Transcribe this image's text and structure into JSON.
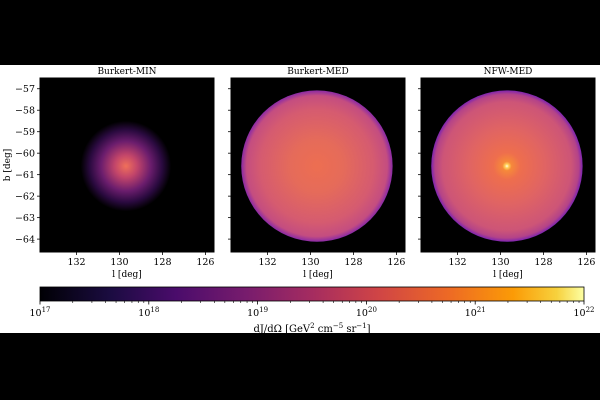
{
  "chart_data": {
    "type": "heatmap",
    "panels": [
      {
        "title": "Burkert-MIN",
        "profile": "burkert-min",
        "xlabel": "l [deg]",
        "ylabel": "b [deg]",
        "xlim": [
          133.7,
          125.6
        ],
        "ylim": [
          -64.6,
          -56.5
        ],
        "xticks": [
          132,
          130,
          128,
          126
        ],
        "yticks": [
          -57,
          -58,
          -59,
          -60,
          -61,
          -62,
          -63,
          -64
        ],
        "center": [
          129.7,
          -60.6
        ],
        "show_yticklabels": true
      },
      {
        "title": "Burkert-MED",
        "profile": "burkert-med",
        "xlabel": "l [deg]",
        "ylabel": "",
        "xlim": [
          133.7,
          125.6
        ],
        "ylim": [
          -64.6,
          -56.5
        ],
        "xticks": [
          132,
          130,
          128,
          126
        ],
        "yticks": [
          -57,
          -58,
          -59,
          -60,
          -61,
          -62,
          -63,
          -64
        ],
        "center": [
          129.7,
          -60.6
        ],
        "show_yticklabels": false
      },
      {
        "title": "NFW-MED",
        "profile": "nfw-med",
        "xlabel": "l [deg]",
        "ylabel": "",
        "xlim": [
          133.7,
          125.6
        ],
        "ylim": [
          -64.6,
          -56.5
        ],
        "xticks": [
          132,
          130,
          128,
          126
        ],
        "yticks": [
          -57,
          -58,
          -59,
          -60,
          -61,
          -62,
          -63,
          -64
        ],
        "center": [
          129.7,
          -60.6
        ],
        "show_yticklabels": false
      }
    ],
    "colorbar": {
      "colormap": "inferno",
      "scale": "log",
      "range": [
        1e+17,
        1e+22
      ],
      "ticks": [
        17,
        18,
        19,
        20,
        21,
        22
      ],
      "tick_base": "10",
      "label_main": "dJ/dΩ [GeV",
      "label_exp1": "2",
      "label_mid": " cm",
      "label_exp2": "−5",
      "label_mid2": " sr",
      "label_exp3": "−1",
      "label_end": "]"
    }
  }
}
